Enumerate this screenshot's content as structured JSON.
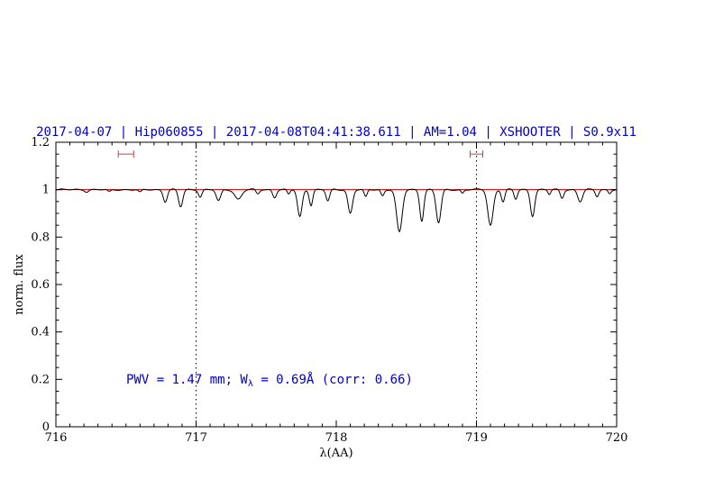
{
  "chart_data": {
    "type": "line",
    "title": "2017-04-07 | Hip060855 | 2017-04-08T04:41:38.611 | AM=1.04 | XSHOOTER | S0.9x11",
    "xlabel": "λ(AA)",
    "ylabel": "norm. flux",
    "xlim": [
      716,
      720
    ],
    "ylim": [
      0,
      1.2
    ],
    "xticks": {
      "major": [
        716,
        717,
        718,
        719,
        720
      ],
      "labels": [
        "716",
        "717",
        "718",
        "719",
        "720"
      ],
      "minor_step": 0.1
    },
    "yticks": {
      "major": [
        0,
        0.2,
        0.4,
        0.6,
        0.8,
        1,
        1.2
      ],
      "labels": [
        "0",
        "0.2",
        "0.4",
        "0.6",
        "0.8",
        "1",
        "1.2"
      ],
      "minor_step": 0.05
    },
    "vlines": [
      717,
      719
    ],
    "grid": "dotted-vertical-only",
    "legend": "none",
    "colors": {
      "title": "#0000cc",
      "annotation": "#0000cc",
      "fit_line": "#cc0000",
      "spectrum": "#000000",
      "markers": "#cc4040",
      "axis": "#000000"
    },
    "series": [
      {
        "name": "continuum fit",
        "color": "#cc0000",
        "constant": 1.0
      },
      {
        "name": "observed spectrum",
        "color": "#000000",
        "model": "continuum minus gaussian absorption lines"
      }
    ],
    "absorption_lines": [
      {
        "center": 716.22,
        "depth": 0.008,
        "sigma": 0.012
      },
      {
        "center": 716.38,
        "depth": 0.01,
        "sigma": 0.012
      },
      {
        "center": 716.6,
        "depth": 0.012,
        "sigma": 0.012
      },
      {
        "center": 716.78,
        "depth": 0.05,
        "sigma": 0.014
      },
      {
        "center": 716.89,
        "depth": 0.072,
        "sigma": 0.015
      },
      {
        "center": 717.03,
        "depth": 0.03,
        "sigma": 0.012
      },
      {
        "center": 717.16,
        "depth": 0.048,
        "sigma": 0.016
      },
      {
        "center": 717.3,
        "depth": 0.04,
        "sigma": 0.024
      },
      {
        "center": 717.44,
        "depth": 0.018,
        "sigma": 0.012
      },
      {
        "center": 717.56,
        "depth": 0.032,
        "sigma": 0.013
      },
      {
        "center": 717.66,
        "depth": 0.02,
        "sigma": 0.01
      },
      {
        "center": 717.74,
        "depth": 0.115,
        "sigma": 0.016
      },
      {
        "center": 717.82,
        "depth": 0.065,
        "sigma": 0.012
      },
      {
        "center": 717.94,
        "depth": 0.048,
        "sigma": 0.013
      },
      {
        "center": 718.1,
        "depth": 0.1,
        "sigma": 0.016
      },
      {
        "center": 718.21,
        "depth": 0.032,
        "sigma": 0.011
      },
      {
        "center": 718.33,
        "depth": 0.026,
        "sigma": 0.011
      },
      {
        "center": 718.45,
        "depth": 0.18,
        "sigma": 0.02
      },
      {
        "center": 718.61,
        "depth": 0.13,
        "sigma": 0.014
      },
      {
        "center": 718.73,
        "depth": 0.14,
        "sigma": 0.017
      },
      {
        "center": 718.9,
        "depth": 0.015,
        "sigma": 0.01
      },
      {
        "center": 719.1,
        "depth": 0.15,
        "sigma": 0.019
      },
      {
        "center": 719.19,
        "depth": 0.05,
        "sigma": 0.012
      },
      {
        "center": 719.28,
        "depth": 0.04,
        "sigma": 0.012
      },
      {
        "center": 719.4,
        "depth": 0.11,
        "sigma": 0.015
      },
      {
        "center": 719.52,
        "depth": 0.02,
        "sigma": 0.01
      },
      {
        "center": 719.61,
        "depth": 0.035,
        "sigma": 0.012
      },
      {
        "center": 719.74,
        "depth": 0.05,
        "sigma": 0.017
      },
      {
        "center": 719.86,
        "depth": 0.028,
        "sigma": 0.012
      },
      {
        "center": 719.95,
        "depth": 0.015,
        "sigma": 0.01
      }
    ],
    "markers": [
      {
        "center": 716.5,
        "half_width": 0.055,
        "y": 1.15
      },
      {
        "center": 719.0,
        "half_width": 0.045,
        "y": 1.15
      }
    ],
    "annotation": {
      "prefix": "PWV = 1.47 mm; W",
      "sub": "λ",
      "suffix": " = 0.69Å (corr: 0.66)"
    }
  }
}
